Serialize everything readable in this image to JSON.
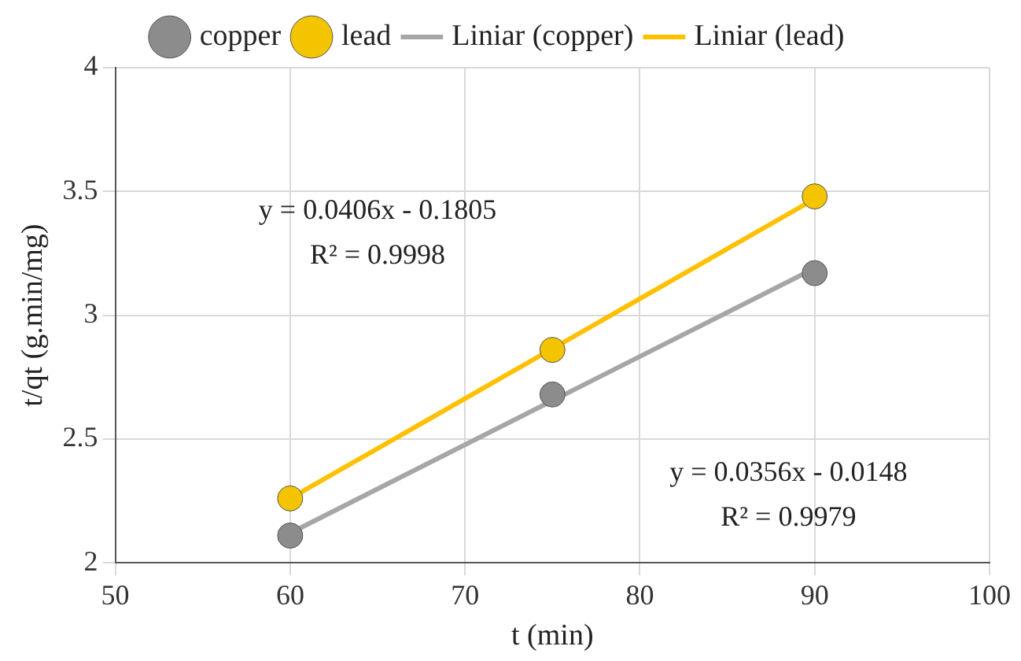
{
  "chart_data": {
    "type": "scatter",
    "xlabel": "t (min)",
    "ylabel": "t/qt (g.min/mg)",
    "xlim": [
      50,
      100
    ],
    "xticks": [
      50,
      60,
      70,
      80,
      90,
      100
    ],
    "ylim": [
      2,
      4
    ],
    "yticks": [
      2,
      2.5,
      3,
      3.5,
      4
    ],
    "grid": true,
    "legend": "top",
    "series": [
      {
        "name": "copper",
        "marker": "circle",
        "color": "#8c8c8c",
        "x": [
          60,
          75,
          90
        ],
        "values": [
          2.11,
          2.68,
          3.17
        ]
      },
      {
        "name": "lead",
        "marker": "circle",
        "color": "#f5c400",
        "x": [
          60,
          75,
          90
        ],
        "values": [
          2.26,
          2.86,
          3.48
        ]
      },
      {
        "name": "Liniar (copper)",
        "type": "line",
        "marker": "none",
        "color": "#a6a6a6",
        "x": [
          60,
          90
        ],
        "values": [
          2.12,
          3.19
        ]
      },
      {
        "name": "Liniar (lead)",
        "type": "line",
        "marker": "none",
        "color": "#ffc000",
        "x": [
          60,
          90
        ],
        "values": [
          2.26,
          3.47
        ]
      }
    ],
    "annotations": [
      "y = 0.0406x - 0.1805",
      "R² = 0.9998",
      "y = 0.0356x - 0.0148",
      "R² = 0.9979"
    ]
  }
}
